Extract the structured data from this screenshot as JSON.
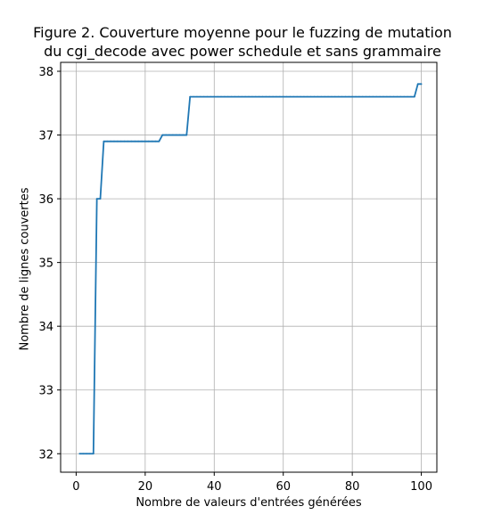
{
  "chart_data": {
    "type": "line",
    "title_lines": [
      "Figure 2. Couverture moyenne pour le fuzzing de mutation",
      "du cgi_decode avec power schedule et sans grammaire"
    ],
    "xlabel": "Nombre de valeurs d'entrées générées",
    "ylabel": "Nombre de lignes couvertes",
    "xlim": [
      -4.5,
      104.5
    ],
    "ylim": [
      31.71,
      38.14
    ],
    "xticks": [
      0,
      20,
      40,
      60,
      80,
      100
    ],
    "yticks": [
      32,
      33,
      34,
      35,
      36,
      37,
      38
    ],
    "grid": true,
    "series": [
      {
        "color": "#1f77b4",
        "x": [
          1,
          2,
          3,
          4,
          5,
          6,
          7,
          8,
          9,
          10,
          11,
          12,
          13,
          14,
          15,
          16,
          17,
          18,
          19,
          20,
          21,
          22,
          23,
          24,
          25,
          26,
          27,
          28,
          29,
          30,
          31,
          32,
          33,
          34,
          35,
          36,
          37,
          38,
          39,
          40,
          41,
          42,
          43,
          44,
          45,
          46,
          47,
          48,
          49,
          50,
          51,
          52,
          53,
          54,
          55,
          56,
          57,
          58,
          59,
          60,
          61,
          62,
          63,
          64,
          65,
          66,
          67,
          68,
          69,
          70,
          71,
          72,
          73,
          74,
          75,
          76,
          77,
          78,
          79,
          80,
          81,
          82,
          83,
          84,
          85,
          86,
          87,
          88,
          89,
          90,
          91,
          92,
          93,
          94,
          95,
          96,
          97,
          98,
          99,
          100
        ],
        "y": [
          32,
          32,
          32,
          32,
          32,
          36,
          36,
          36.9,
          36.9,
          36.9,
          36.9,
          36.9,
          36.9,
          36.9,
          36.9,
          36.9,
          36.9,
          36.9,
          36.9,
          36.9,
          36.9,
          36.9,
          36.9,
          36.9,
          37,
          37,
          37,
          37,
          37,
          37,
          37,
          37,
          37.6,
          37.6,
          37.6,
          37.6,
          37.6,
          37.6,
          37.6,
          37.6,
          37.6,
          37.6,
          37.6,
          37.6,
          37.6,
          37.6,
          37.6,
          37.6,
          37.6,
          37.6,
          37.6,
          37.6,
          37.6,
          37.6,
          37.6,
          37.6,
          37.6,
          37.6,
          37.6,
          37.6,
          37.6,
          37.6,
          37.6,
          37.6,
          37.6,
          37.6,
          37.6,
          37.6,
          37.6,
          37.6,
          37.6,
          37.6,
          37.6,
          37.6,
          37.6,
          37.6,
          37.6,
          37.6,
          37.6,
          37.6,
          37.6,
          37.6,
          37.6,
          37.6,
          37.6,
          37.6,
          37.6,
          37.6,
          37.6,
          37.6,
          37.6,
          37.6,
          37.6,
          37.6,
          37.6,
          37.6,
          37.6,
          37.6,
          37.8,
          37.8
        ]
      }
    ]
  }
}
